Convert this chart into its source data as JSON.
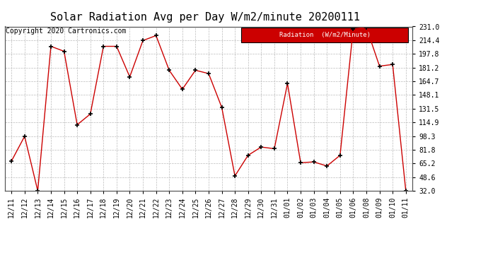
{
  "title": "Solar Radiation Avg per Day W/m2/minute 20200111",
  "copyright": "Copyright 2020 Cartronics.com",
  "legend_label": "Radiation  (W/m2/Minute)",
  "dates": [
    "12/11",
    "12/12",
    "12/13",
    "12/14",
    "12/15",
    "12/16",
    "12/17",
    "12/18",
    "12/19",
    "12/20",
    "12/21",
    "12/22",
    "12/23",
    "12/24",
    "12/25",
    "12/26",
    "12/27",
    "12/28",
    "12/29",
    "12/30",
    "12/31",
    "01/01",
    "01/02",
    "01/03",
    "01/04",
    "01/05",
    "01/06",
    "01/08",
    "01/09",
    "01/10",
    "01/11"
  ],
  "values": [
    68,
    98,
    32,
    207,
    201,
    112,
    125,
    207,
    207,
    170,
    214,
    220,
    178,
    155,
    178,
    174,
    133,
    50,
    75,
    85,
    83,
    162,
    66,
    67,
    62,
    75,
    228,
    230,
    183,
    185,
    32
  ],
  "y_ticks": [
    32.0,
    48.6,
    65.2,
    81.8,
    98.3,
    114.9,
    131.5,
    148.1,
    164.7,
    181.2,
    197.8,
    214.4,
    231.0
  ],
  "line_color": "#cc0000",
  "marker_color": "#000000",
  "background_color": "#ffffff",
  "grid_color": "#bbbbbb",
  "legend_bg": "#cc0000",
  "legend_text_color": "#ffffff",
  "title_fontsize": 11,
  "axis_fontsize": 7,
  "copyright_fontsize": 7
}
